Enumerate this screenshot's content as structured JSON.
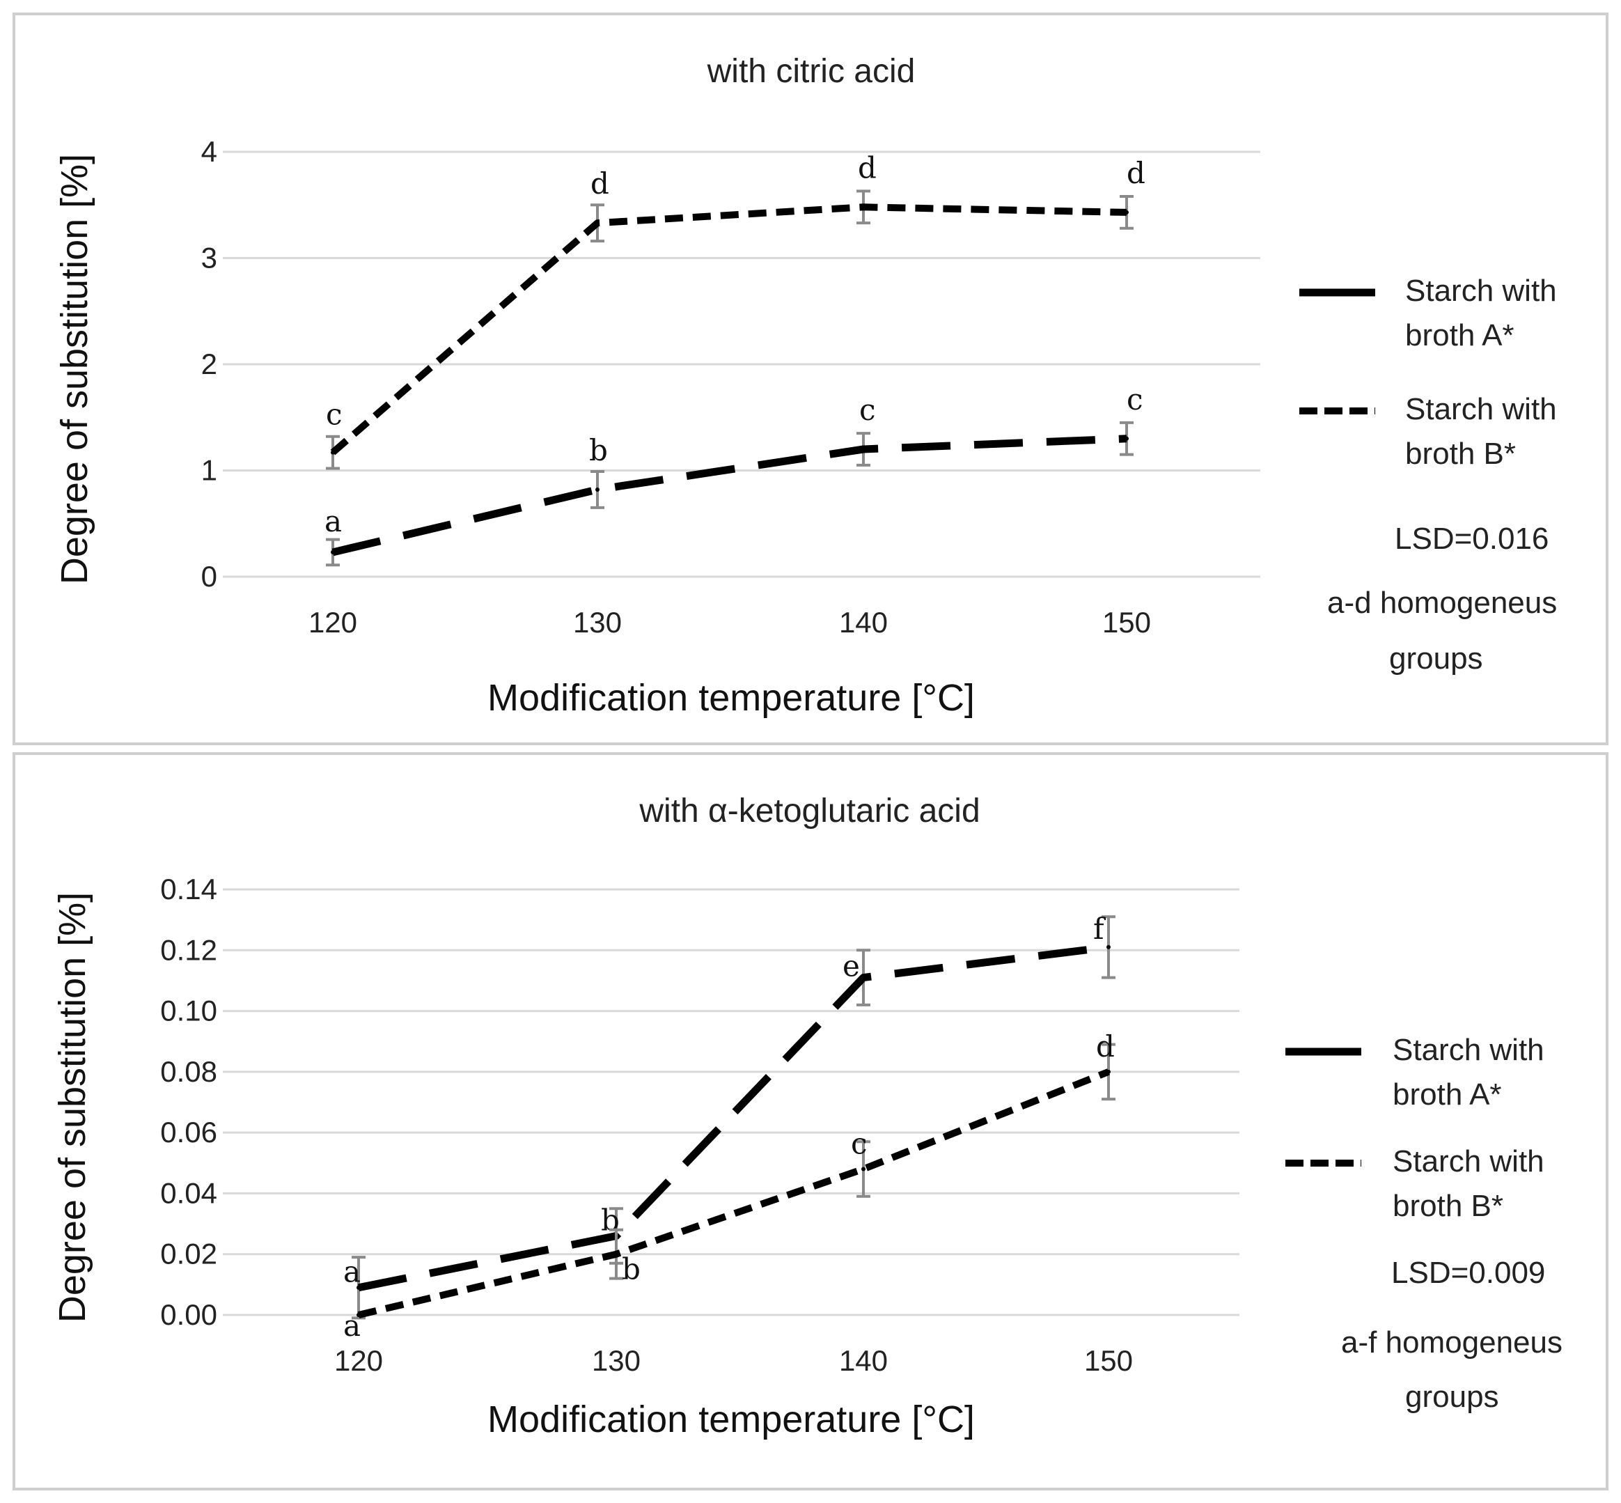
{
  "chart_data": [
    {
      "type": "line",
      "title": "with citric acid",
      "xlabel": "Modification temperature [°C]",
      "ylabel": "Degree of substitution [%]",
      "x": [
        120,
        130,
        140,
        150
      ],
      "ylim": [
        0,
        4
      ],
      "yticks": [
        "0",
        "1",
        "2",
        "3",
        "4"
      ],
      "series": [
        {
          "name": "Starch with broth A*",
          "legend_lines": [
            "Starch with",
            "broth A*"
          ],
          "style": "long-dash",
          "values": [
            0.23,
            0.82,
            1.2,
            1.3
          ],
          "errors": [
            0.12,
            0.17,
            0.15,
            0.15
          ],
          "letters": [
            "a",
            "b",
            "c",
            "c"
          ]
        },
        {
          "name": "Starch with broth B*",
          "legend_lines": [
            "Starch with",
            "broth B*"
          ],
          "style": "short-dash",
          "values": [
            1.17,
            3.33,
            3.48,
            3.43
          ],
          "errors": [
            0.15,
            0.17,
            0.15,
            0.15
          ],
          "letters": [
            "c",
            "d",
            "d",
            "d"
          ]
        }
      ],
      "notes": [
        "LSD=0.016",
        "a-d homogeneus",
        "groups"
      ]
    },
    {
      "type": "line",
      "title": "with α-ketoglutaric acid",
      "xlabel": "Modification temperature [°C]",
      "ylabel": "Degree of substitution [%]",
      "x": [
        120,
        130,
        140,
        150
      ],
      "ylim": [
        0,
        0.14
      ],
      "yticks": [
        "0.00",
        "0.02",
        "0.04",
        "0.06",
        "0.08",
        "0.10",
        "0.12",
        "0.14"
      ],
      "series": [
        {
          "name": "Starch with broth A*",
          "legend_lines": [
            "Starch with",
            "broth A*"
          ],
          "style": "long-dash",
          "values": [
            0.009,
            0.026,
            0.111,
            0.121
          ],
          "errors": [
            0.01,
            0.009,
            0.009,
            0.01
          ],
          "letters": [
            "a",
            "b",
            "e",
            "f"
          ]
        },
        {
          "name": "Starch with broth B*",
          "legend_lines": [
            "Starch with",
            "broth B*"
          ],
          "style": "short-dash",
          "values": [
            0.0,
            0.02,
            0.048,
            0.08
          ],
          "errors": [
            0.0,
            0.008,
            0.009,
            0.009
          ],
          "letters": [
            "a",
            "b",
            "c",
            "d"
          ]
        }
      ],
      "notes": [
        "LSD=0.009",
        "a-f homogeneus",
        "groups"
      ]
    }
  ]
}
